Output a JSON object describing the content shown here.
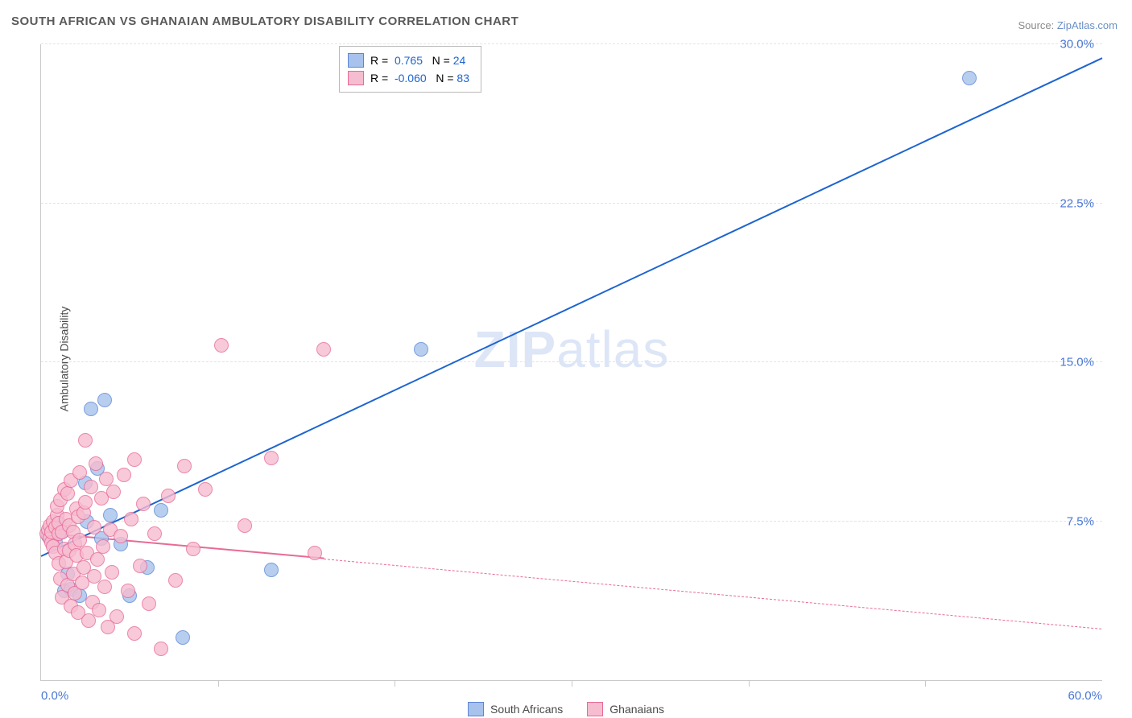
{
  "title": "SOUTH AFRICAN VS GHANAIAN AMBULATORY DISABILITY CORRELATION CHART",
  "source_prefix": "Source: ",
  "source_name": "ZipAtlas.com",
  "ylabel": "Ambulatory Disability",
  "watermark_bold": "ZIP",
  "watermark_rest": "atlas",
  "chart": {
    "type": "scatter-correlation",
    "xlim": [
      0,
      60
    ],
    "ylim": [
      0,
      30
    ],
    "x_tick_step": 10,
    "y_ticks": [
      7.5,
      15.0,
      22.5,
      30.0
    ],
    "y_tick_labels": [
      "7.5%",
      "15.0%",
      "22.5%",
      "30.0%"
    ],
    "x_min_label": "0.0%",
    "x_max_label": "60.0%",
    "grid_color": "#e3e3e3",
    "axis_color": "#c9c9c9",
    "marker_radius": 9,
    "marker_border_width": 1.2,
    "marker_fill_opacity": 0.35,
    "series": [
      {
        "name": "South Africans",
        "color_fill": "#a7c2ec",
        "color_border": "#5b86d6",
        "R_label": "R =",
        "R": "0.765",
        "N_label": "N =",
        "N": "24",
        "trend": {
          "x1": 0,
          "y1": 5.8,
          "x2": 60,
          "y2": 29.3,
          "solid_until_x": 60,
          "color": "#1d64d0",
          "width": 2
        },
        "points": [
          [
            0.4,
            6.8
          ],
          [
            0.6,
            7.0
          ],
          [
            0.8,
            6.5
          ],
          [
            1.0,
            7.4
          ],
          [
            1.2,
            7.0
          ],
          [
            1.3,
            4.2
          ],
          [
            1.5,
            5.0
          ],
          [
            1.7,
            4.3
          ],
          [
            2.2,
            4.0
          ],
          [
            2.5,
            9.3
          ],
          [
            2.8,
            12.8
          ],
          [
            2.6,
            7.5
          ],
          [
            3.2,
            10.0
          ],
          [
            3.4,
            6.7
          ],
          [
            3.6,
            13.2
          ],
          [
            3.9,
            7.8
          ],
          [
            4.5,
            6.4
          ],
          [
            5.0,
            4.0
          ],
          [
            6.0,
            5.3
          ],
          [
            6.8,
            8.0
          ],
          [
            8.0,
            2.0
          ],
          [
            13.0,
            5.2
          ],
          [
            21.5,
            15.6
          ],
          [
            52.5,
            28.4
          ]
        ]
      },
      {
        "name": "Ghanaians",
        "color_fill": "#f6bcd0",
        "color_border": "#e86a96",
        "R_label": "R =",
        "R": "-0.060",
        "N_label": "N =",
        "N": "83",
        "trend": {
          "x1": 0,
          "y1": 6.9,
          "x2": 60,
          "y2": 2.4,
          "solid_until_x": 16,
          "color": "#e86a96",
          "width": 2
        },
        "points": [
          [
            0.3,
            6.9
          ],
          [
            0.4,
            7.1
          ],
          [
            0.5,
            6.7
          ],
          [
            0.5,
            7.3
          ],
          [
            0.6,
            6.5
          ],
          [
            0.6,
            7.0
          ],
          [
            0.7,
            7.5
          ],
          [
            0.7,
            6.3
          ],
          [
            0.8,
            7.2
          ],
          [
            0.8,
            6.0
          ],
          [
            0.9,
            7.8
          ],
          [
            0.9,
            8.2
          ],
          [
            1.0,
            5.5
          ],
          [
            1.0,
            6.9
          ],
          [
            1.0,
            7.4
          ],
          [
            1.1,
            4.8
          ],
          [
            1.1,
            8.5
          ],
          [
            1.2,
            7.0
          ],
          [
            1.2,
            3.9
          ],
          [
            1.3,
            6.2
          ],
          [
            1.3,
            9.0
          ],
          [
            1.4,
            5.6
          ],
          [
            1.4,
            7.6
          ],
          [
            1.5,
            4.5
          ],
          [
            1.5,
            8.8
          ],
          [
            1.6,
            6.1
          ],
          [
            1.6,
            7.3
          ],
          [
            1.7,
            3.5
          ],
          [
            1.7,
            9.4
          ],
          [
            1.8,
            5.0
          ],
          [
            1.8,
            7.0
          ],
          [
            1.9,
            6.4
          ],
          [
            1.9,
            4.1
          ],
          [
            2.0,
            8.1
          ],
          [
            2.0,
            5.9
          ],
          [
            2.1,
            7.7
          ],
          [
            2.1,
            3.2
          ],
          [
            2.2,
            9.8
          ],
          [
            2.2,
            6.6
          ],
          [
            2.3,
            4.6
          ],
          [
            2.4,
            7.9
          ],
          [
            2.4,
            5.3
          ],
          [
            2.5,
            8.4
          ],
          [
            2.5,
            11.3
          ],
          [
            2.6,
            6.0
          ],
          [
            2.7,
            2.8
          ],
          [
            2.8,
            9.1
          ],
          [
            2.9,
            3.7
          ],
          [
            3.0,
            7.2
          ],
          [
            3.0,
            4.9
          ],
          [
            3.1,
            10.2
          ],
          [
            3.2,
            5.7
          ],
          [
            3.3,
            3.3
          ],
          [
            3.4,
            8.6
          ],
          [
            3.5,
            6.3
          ],
          [
            3.6,
            4.4
          ],
          [
            3.7,
            9.5
          ],
          [
            3.8,
            2.5
          ],
          [
            3.9,
            7.1
          ],
          [
            4.0,
            5.1
          ],
          [
            4.1,
            8.9
          ],
          [
            4.3,
            3.0
          ],
          [
            4.5,
            6.8
          ],
          [
            4.7,
            9.7
          ],
          [
            4.9,
            4.2
          ],
          [
            5.1,
            7.6
          ],
          [
            5.3,
            2.2
          ],
          [
            5.3,
            10.4
          ],
          [
            5.6,
            5.4
          ],
          [
            5.8,
            8.3
          ],
          [
            6.1,
            3.6
          ],
          [
            6.4,
            6.9
          ],
          [
            6.8,
            1.5
          ],
          [
            7.2,
            8.7
          ],
          [
            7.6,
            4.7
          ],
          [
            8.1,
            10.1
          ],
          [
            8.6,
            6.2
          ],
          [
            9.3,
            9.0
          ],
          [
            10.2,
            15.8
          ],
          [
            11.5,
            7.3
          ],
          [
            13.0,
            10.5
          ],
          [
            15.5,
            6.0
          ],
          [
            16.0,
            15.6
          ]
        ]
      }
    ]
  },
  "legend_bottom": [
    "South Africans",
    "Ghanaians"
  ],
  "stat_value_color": "#1d64d0"
}
